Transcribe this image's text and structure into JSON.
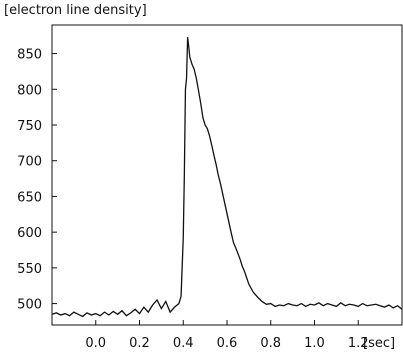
{
  "chart_data": {
    "type": "line",
    "ylabel": "[electron line density]",
    "xunit": "[sec]",
    "xlim": [
      -0.2,
      1.4
    ],
    "ylim": [
      470,
      890
    ],
    "xticks": [
      0.0,
      0.2,
      0.4,
      0.6,
      0.8,
      1.0,
      1.2
    ],
    "xtick_labels": [
      "0.0",
      "0.2",
      "0.4",
      "0.6",
      "0.8",
      "1.0",
      "1.2"
    ],
    "yticks": [
      500,
      550,
      600,
      650,
      700,
      750,
      800,
      850
    ],
    "ytick_labels": [
      "500",
      "550",
      "600",
      "650",
      "700",
      "750",
      "800",
      "850"
    ],
    "grid": false,
    "series": [
      {
        "x": [
          -0.2,
          -0.18,
          -0.16,
          -0.14,
          -0.12,
          -0.1,
          -0.08,
          -0.06,
          -0.04,
          -0.02,
          0.0,
          0.02,
          0.04,
          0.06,
          0.08,
          0.1,
          0.12,
          0.14,
          0.16,
          0.18,
          0.2,
          0.22,
          0.24,
          0.26,
          0.28,
          0.3,
          0.32,
          0.34,
          0.36,
          0.38,
          0.39,
          0.4,
          0.405,
          0.41,
          0.415,
          0.42,
          0.425,
          0.43,
          0.435,
          0.44,
          0.45,
          0.46,
          0.47,
          0.48,
          0.49,
          0.5,
          0.51,
          0.52,
          0.53,
          0.54,
          0.55,
          0.56,
          0.57,
          0.58,
          0.59,
          0.6,
          0.61,
          0.62,
          0.63,
          0.64,
          0.65,
          0.66,
          0.67,
          0.68,
          0.69,
          0.7,
          0.72,
          0.74,
          0.76,
          0.78,
          0.8,
          0.82,
          0.84,
          0.86,
          0.88,
          0.9,
          0.92,
          0.94,
          0.96,
          0.98,
          1.0,
          1.02,
          1.04,
          1.06,
          1.08,
          1.1,
          1.12,
          1.14,
          1.16,
          1.18,
          1.2,
          1.22,
          1.24,
          1.26,
          1.28,
          1.3,
          1.32,
          1.34,
          1.36,
          1.38,
          1.4
        ],
        "y": [
          485,
          487,
          484,
          486,
          483,
          488,
          485,
          482,
          487,
          484,
          486,
          483,
          488,
          484,
          489,
          485,
          490,
          483,
          487,
          492,
          486,
          495,
          488,
          498,
          505,
          493,
          503,
          488,
          495,
          500,
          510,
          592,
          680,
          800,
          815,
          873,
          860,
          845,
          840,
          835,
          828,
          815,
          798,
          780,
          760,
          750,
          745,
          735,
          722,
          708,
          695,
          680,
          668,
          654,
          640,
          626,
          612,
          598,
          585,
          578,
          570,
          562,
          552,
          545,
          536,
          527,
          516,
          509,
          503,
          499,
          500,
          496,
          498,
          497,
          500,
          498,
          497,
          500,
          496,
          499,
          498,
          501,
          497,
          500,
          498,
          496,
          501,
          497,
          499,
          498,
          496,
          500,
          497,
          498,
          499,
          497,
          495,
          498,
          494,
          497,
          492
        ]
      }
    ]
  }
}
